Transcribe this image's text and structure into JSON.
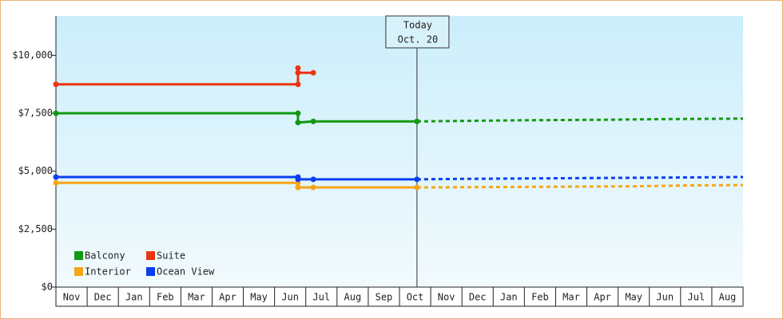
{
  "chart_data": {
    "type": "line",
    "categories": [
      "Nov",
      "Dec",
      "Jan",
      "Feb",
      "Mar",
      "Apr",
      "May",
      "Jun",
      "Jul",
      "Aug",
      "Sep",
      "Oct",
      "Nov",
      "Dec",
      "Jan",
      "Feb",
      "Mar",
      "Apr",
      "May",
      "Jun",
      "Jul",
      "Aug"
    ],
    "ylim": [
      0,
      11700
    ],
    "yticks": [
      {
        "value": 0,
        "label": "$0"
      },
      {
        "value": 2500,
        "label": "$2,500"
      },
      {
        "value": 5000,
        "label": "$5,000"
      },
      {
        "value": 7500,
        "label": "$7,500"
      },
      {
        "value": 10000,
        "label": "$10,000"
      }
    ],
    "legend": "bottom-left",
    "annotation": {
      "lines": [
        "Today",
        "Oct. 20"
      ],
      "x": 11.56
    },
    "series": [
      {
        "name": "Balcony",
        "color": "#119911",
        "x": [
          0,
          7.75,
          7.75,
          8.24,
          11.56
        ],
        "values": [
          7500,
          7500,
          7100,
          7150,
          7150
        ],
        "forecast": {
          "x": [
            11.56,
            13,
            15,
            17.5,
            19.5,
            22
          ],
          "values": [
            7150,
            7170,
            7200,
            7220,
            7250,
            7270
          ]
        }
      },
      {
        "name": "Suite",
        "color": "#ee3311",
        "x": [
          0,
          7.75,
          7.75,
          7.75,
          8.24
        ],
        "values": [
          8750,
          8750,
          9450,
          9250,
          9250
        ]
      },
      {
        "name": "Interior",
        "color": "#f5a516",
        "x": [
          0,
          7.75,
          7.75,
          8.24,
          11.56
        ],
        "values": [
          4500,
          4500,
          4300,
          4300,
          4300
        ],
        "forecast": {
          "x": [
            11.56,
            14.5,
            18.5,
            20.5,
            22
          ],
          "values": [
            4300,
            4320,
            4350,
            4390,
            4400
          ]
        }
      },
      {
        "name": "Ocean View",
        "color": "#0a3ff0",
        "x": [
          0,
          7.75,
          7.75,
          8.24,
          11.56
        ],
        "values": [
          4750,
          4750,
          4650,
          4650,
          4650
        ],
        "forecast": {
          "x": [
            11.56,
            13,
            16.5,
            20,
            22
          ],
          "values": [
            4650,
            4670,
            4700,
            4730,
            4750
          ]
        }
      }
    ]
  }
}
